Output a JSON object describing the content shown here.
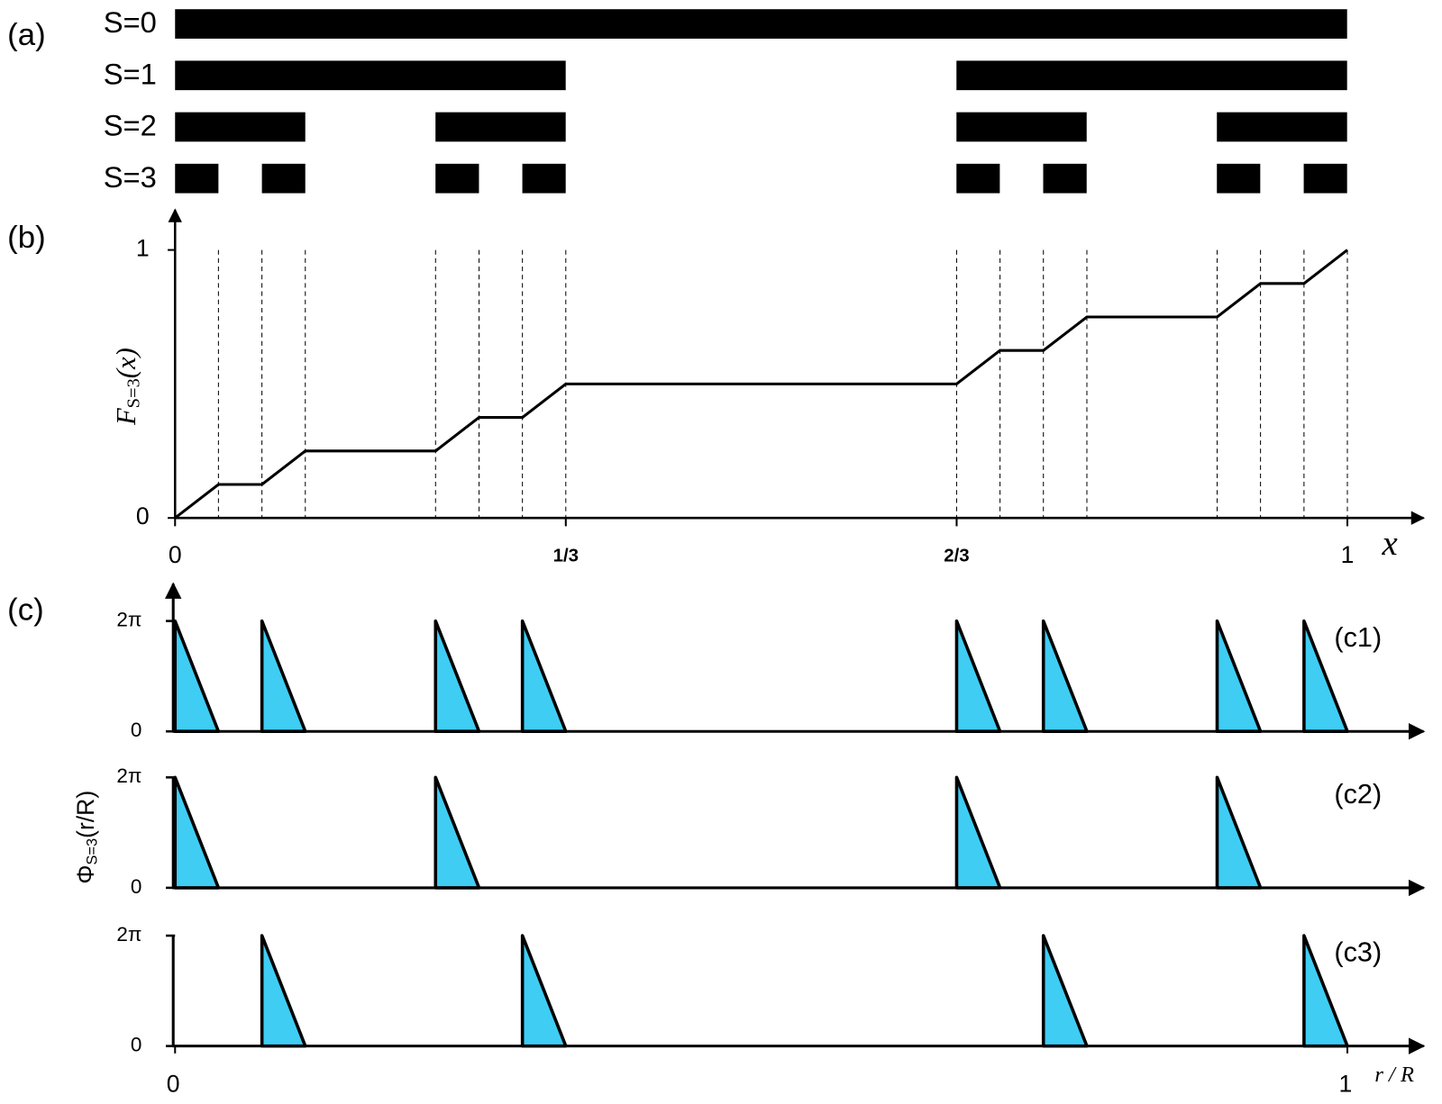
{
  "panel_a": {
    "label": "(a)",
    "rows": [
      {
        "label": "S=0",
        "intervals": [
          [
            0,
            1
          ]
        ]
      },
      {
        "label": "S=1",
        "intervals": [
          [
            0,
            0.3333
          ],
          [
            0.6667,
            1
          ]
        ]
      },
      {
        "label": "S=2",
        "intervals": [
          [
            0,
            0.1111
          ],
          [
            0.2222,
            0.3333
          ],
          [
            0.6667,
            0.7778
          ],
          [
            0.8889,
            1
          ]
        ]
      },
      {
        "label": "S=3",
        "intervals": [
          [
            0,
            0.037
          ],
          [
            0.0741,
            0.1111
          ],
          [
            0.2222,
            0.2593
          ],
          [
            0.2963,
            0.3333
          ],
          [
            0.6667,
            0.7037
          ],
          [
            0.7407,
            0.7778
          ],
          [
            0.8889,
            0.9259
          ],
          [
            0.963,
            1
          ]
        ]
      }
    ]
  },
  "panel_b": {
    "label": "(b)",
    "ylabel": "F",
    "ylabel_sub": "S=3",
    "ylabel_arg": "(x)",
    "xlabel": "x",
    "xlim": [
      0,
      1.065
    ],
    "ylim": [
      0,
      1.15
    ],
    "xticks": [
      0,
      {
        "value": 0.3333,
        "label": "1/3"
      },
      {
        "value": 0.6667,
        "label": "2/3"
      },
      1
    ],
    "yticks": [
      0,
      1
    ],
    "staircase": {
      "x": [
        0,
        0.037,
        0.0741,
        0.1111,
        0.2222,
        0.2593,
        0.2963,
        0.3333,
        0.6667,
        0.7037,
        0.7407,
        0.7778,
        0.8889,
        0.9259,
        0.963,
        1
      ],
      "y": [
        0,
        0.125,
        0.125,
        0.25,
        0.25,
        0.375,
        0.375,
        0.5,
        0.5,
        0.625,
        0.625,
        0.75,
        0.75,
        0.875,
        0.875,
        1
      ]
    }
  },
  "panel_c": {
    "label": "(c)",
    "ylabel": "Φ",
    "ylabel_sub": "S=3",
    "ylabel_arg": "(r/R)",
    "xlabel": "r / R",
    "xlim": [
      0,
      1.065
    ],
    "ylim": [
      0,
      8.4
    ],
    "xticks": [
      0,
      1
    ],
    "yticks": [
      0,
      {
        "value": 6.2832,
        "label": "2π"
      }
    ],
    "peak": 6.2832,
    "subplots": [
      {
        "label": "(c1)",
        "ramps": [
          [
            0,
            0.037
          ],
          [
            0.0741,
            0.1111
          ],
          [
            0.2222,
            0.2593
          ],
          [
            0.2963,
            0.3333
          ],
          [
            0.6667,
            0.7037
          ],
          [
            0.7407,
            0.7778
          ],
          [
            0.8889,
            0.9259
          ],
          [
            0.963,
            1
          ]
        ]
      },
      {
        "label": "(c2)",
        "ramps": [
          [
            0,
            0.037
          ],
          [
            0.2222,
            0.2593
          ],
          [
            0.6667,
            0.7037
          ],
          [
            0.8889,
            0.9259
          ]
        ]
      },
      {
        "label": "(c3)",
        "ramps": [
          [
            0.0741,
            0.1111
          ],
          [
            0.2963,
            0.3333
          ],
          [
            0.7407,
            0.7778
          ],
          [
            0.963,
            1
          ]
        ]
      }
    ]
  }
}
